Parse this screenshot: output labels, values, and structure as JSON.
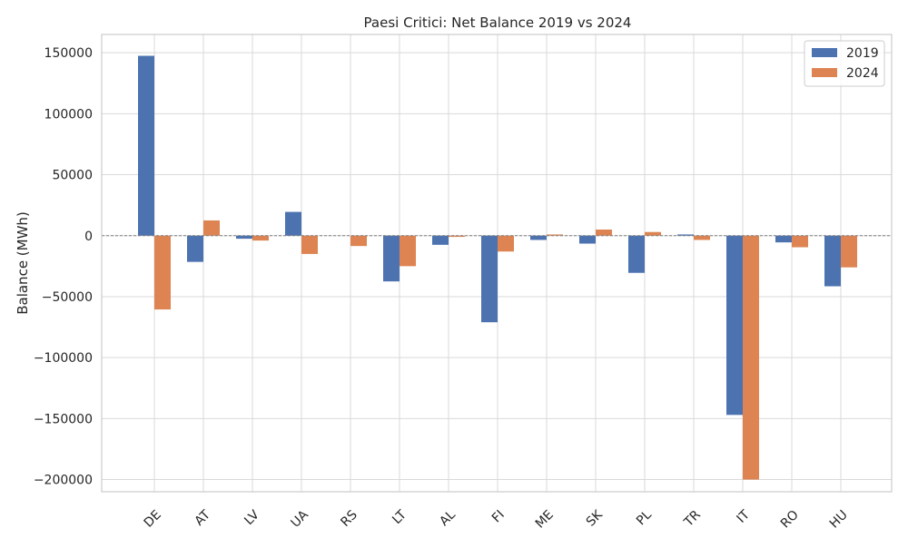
{
  "chart_data": {
    "type": "bar",
    "title": "Paesi Critici: Net Balance 2019 vs 2024",
    "xlabel": "",
    "ylabel": "Balance (MWh)",
    "ylim": [
      -210000,
      165000
    ],
    "yticks": [
      150000,
      100000,
      50000,
      0,
      -50000,
      -100000,
      -150000,
      -200000
    ],
    "ytick_labels": [
      "150000",
      "100000",
      "50000",
      "0",
      "−50000",
      "−100000",
      "−150000",
      "−200000"
    ],
    "categories": [
      "DE",
      "AT",
      "LV",
      "UA",
      "RS",
      "LT",
      "AL",
      "FI",
      "ME",
      "SK",
      "PL",
      "TR",
      "IT",
      "RO",
      "HU"
    ],
    "series": [
      {
        "name": "2019",
        "color": "#4c72b0",
        "values": [
          147500,
          -21500,
          -2500,
          19500,
          0,
          -37500,
          -7500,
          -71000,
          -3500,
          -6500,
          -30500,
          1000,
          -147000,
          -5500,
          -41500
        ]
      },
      {
        "name": "2024",
        "color": "#dd8452",
        "values": [
          -60500,
          12500,
          -4000,
          -15000,
          -8500,
          -25000,
          -1000,
          -13000,
          1000,
          5000,
          3000,
          -3500,
          -200000,
          -9500,
          -26000
        ]
      }
    ],
    "grid": true,
    "zero_line": "dashed",
    "legend_position": "top-right"
  }
}
